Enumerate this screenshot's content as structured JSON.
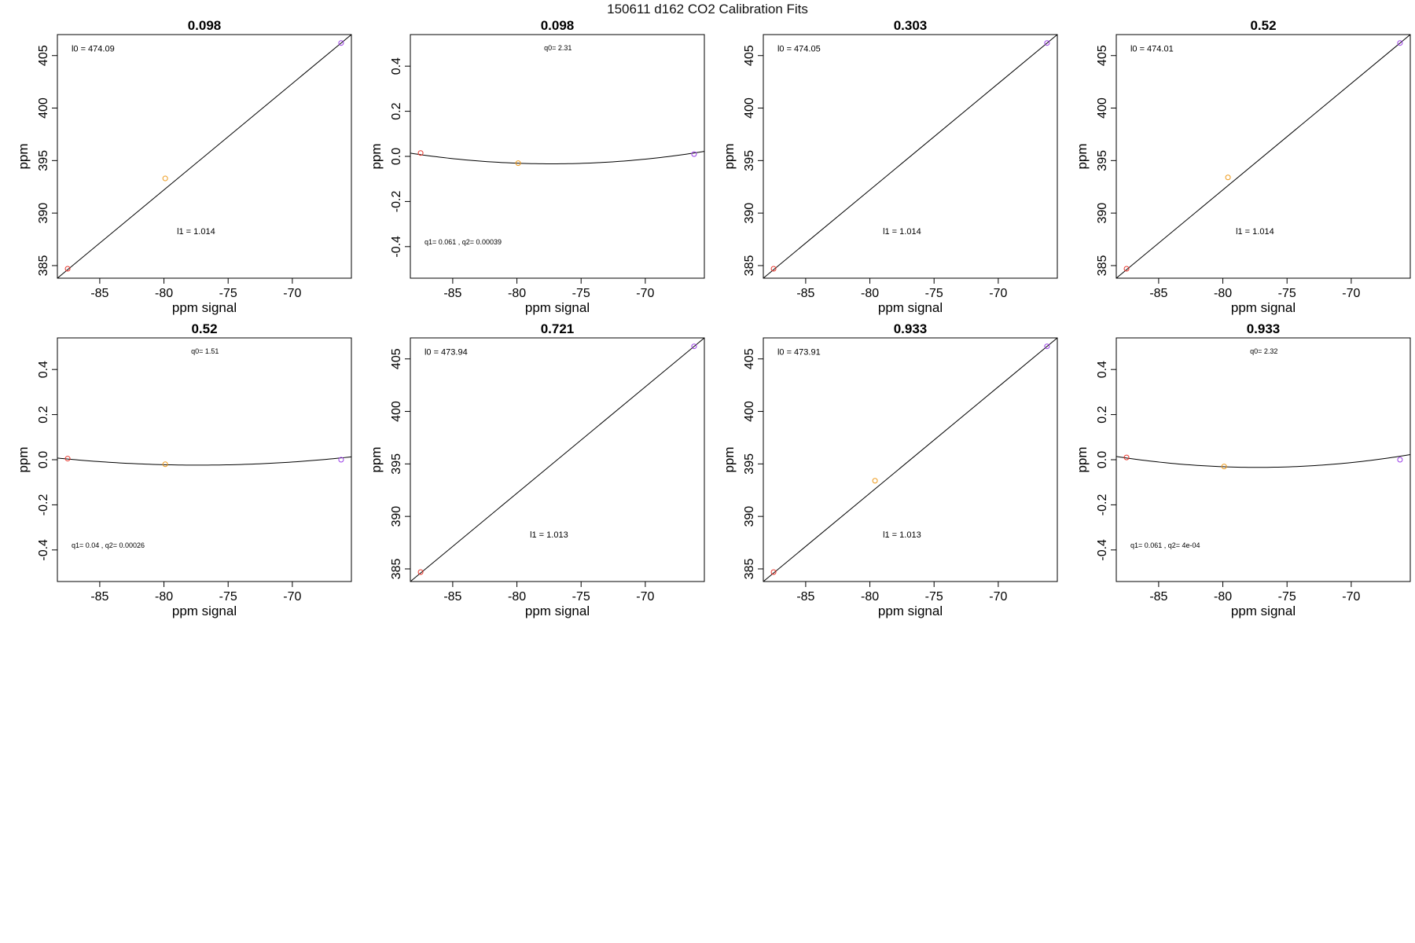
{
  "title": "150611   d162   CO2 Calibration Fits",
  "colors": {
    "red": "#e8342a",
    "orange": "#ee9a1a",
    "purple": "#9a3de6",
    "line": "#000000"
  },
  "chart_data": [
    {
      "type": "scatter",
      "title": "0.098",
      "xlabel": "ppm signal",
      "ylabel": "ppm",
      "xlim": [
        -88.3,
        -65.4
      ],
      "ylim": [
        383.8,
        407
      ],
      "xticks": [
        -85,
        -80,
        -75,
        -70
      ],
      "yticks": [
        385,
        390,
        395,
        400,
        405
      ],
      "points": [
        {
          "x": -87.5,
          "y": 384.7,
          "color": "red"
        },
        {
          "x": -79.9,
          "y": 393.3,
          "color": "orange"
        },
        {
          "x": -66.2,
          "y": 406.2,
          "color": "purple"
        }
      ],
      "fit": {
        "kind": "linear",
        "from": [
          -88.3,
          383.8
        ],
        "to": [
          -65.4,
          407
        ]
      },
      "annotations": [
        {
          "text": "l0 =  474.09",
          "ax": -87.2,
          "ay": 405.4,
          "anchor": "start",
          "size": 11
        },
        {
          "text": "l1 =  1.014",
          "ax": -77.5,
          "ay": 388.0,
          "anchor": "middle",
          "size": 11
        }
      ]
    },
    {
      "type": "scatter",
      "title": "0.098",
      "xlabel": "ppm signal",
      "ylabel": "ppm",
      "xlim": [
        -88.3,
        -65.4
      ],
      "ylim": [
        -0.54,
        0.54
      ],
      "xticks": [
        -85,
        -80,
        -75,
        -70
      ],
      "yticks": [
        -0.4,
        -0.2,
        0.0,
        0.2,
        0.4
      ],
      "yticklabels": [
        "-0.4",
        "-0.2",
        "0.0",
        "0.2",
        "0.4"
      ],
      "points": [
        {
          "x": -87.5,
          "y": 0.015,
          "color": "red"
        },
        {
          "x": -79.9,
          "y": -0.03,
          "color": "orange"
        },
        {
          "x": -66.2,
          "y": 0.01,
          "color": "purple"
        }
      ],
      "fit": {
        "kind": "quadratic",
        "xv": -77.3,
        "yv": -0.033,
        "k": 0.00039
      },
      "annotations": [
        {
          "text": "q0= 2.31",
          "ax": -76.8,
          "ay": 0.47,
          "anchor": "middle",
          "size": 9
        },
        {
          "text": "q1= 0.061 , q2= 0.00039",
          "ax": -87.2,
          "ay": -0.39,
          "anchor": "start",
          "size": 9
        }
      ]
    },
    {
      "type": "scatter",
      "title": "0.303",
      "xlabel": "ppm signal",
      "ylabel": "ppm",
      "xlim": [
        -88.3,
        -65.4
      ],
      "ylim": [
        383.8,
        407
      ],
      "xticks": [
        -85,
        -80,
        -75,
        -70
      ],
      "yticks": [
        385,
        390,
        395,
        400,
        405
      ],
      "points": [
        {
          "x": -87.5,
          "y": 384.7,
          "color": "red"
        },
        {
          "x": -66.2,
          "y": 406.2,
          "color": "purple"
        }
      ],
      "fit": {
        "kind": "linear",
        "from": [
          -88.3,
          383.8
        ],
        "to": [
          -65.4,
          407
        ]
      },
      "annotations": [
        {
          "text": "l0 =  474.05",
          "ax": -87.2,
          "ay": 405.4,
          "anchor": "start",
          "size": 11
        },
        {
          "text": "l1 =  1.014",
          "ax": -77.5,
          "ay": 388.0,
          "anchor": "middle",
          "size": 11
        }
      ]
    },
    {
      "type": "scatter",
      "title": "0.52",
      "xlabel": "ppm signal",
      "ylabel": "ppm",
      "xlim": [
        -88.3,
        -65.4
      ],
      "ylim": [
        383.8,
        407
      ],
      "xticks": [
        -85,
        -80,
        -75,
        -70
      ],
      "yticks": [
        385,
        390,
        395,
        400,
        405
      ],
      "points": [
        {
          "x": -87.5,
          "y": 384.7,
          "color": "red"
        },
        {
          "x": -79.6,
          "y": 393.4,
          "color": "orange"
        },
        {
          "x": -66.2,
          "y": 406.2,
          "color": "purple"
        }
      ],
      "fit": {
        "kind": "linear",
        "from": [
          -88.3,
          383.8
        ],
        "to": [
          -65.4,
          407
        ]
      },
      "annotations": [
        {
          "text": "l0 =  474.01",
          "ax": -87.2,
          "ay": 405.4,
          "anchor": "start",
          "size": 11
        },
        {
          "text": "l1 =  1.014",
          "ax": -77.5,
          "ay": 388.0,
          "anchor": "middle",
          "size": 11
        }
      ]
    },
    {
      "type": "scatter",
      "title": "0.52",
      "xlabel": "ppm signal",
      "ylabel": "ppm",
      "xlim": [
        -88.3,
        -65.4
      ],
      "ylim": [
        -0.54,
        0.54
      ],
      "xticks": [
        -85,
        -80,
        -75,
        -70
      ],
      "yticks": [
        -0.4,
        -0.2,
        0.0,
        0.2,
        0.4
      ],
      "yticklabels": [
        "-0.4",
        "-0.2",
        "0.0",
        "0.2",
        "0.4"
      ],
      "points": [
        {
          "x": -87.5,
          "y": 0.005,
          "color": "red"
        },
        {
          "x": -79.9,
          "y": -0.02,
          "color": "orange"
        },
        {
          "x": -66.2,
          "y": 0.0,
          "color": "purple"
        }
      ],
      "fit": {
        "kind": "quadratic",
        "xv": -77.3,
        "yv": -0.024,
        "k": 0.00026
      },
      "annotations": [
        {
          "text": "q0= 1.51",
          "ax": -76.8,
          "ay": 0.47,
          "anchor": "middle",
          "size": 9
        },
        {
          "text": "q1= 0.04 , q2= 0.00026",
          "ax": -87.2,
          "ay": -0.39,
          "anchor": "start",
          "size": 9
        }
      ]
    },
    {
      "type": "scatter",
      "title": "0.721",
      "xlabel": "ppm signal",
      "ylabel": "ppm",
      "xlim": [
        -88.3,
        -65.4
      ],
      "ylim": [
        383.8,
        407
      ],
      "xticks": [
        -85,
        -80,
        -75,
        -70
      ],
      "yticks": [
        385,
        390,
        395,
        400,
        405
      ],
      "points": [
        {
          "x": -87.5,
          "y": 384.7,
          "color": "red"
        },
        {
          "x": -66.2,
          "y": 406.2,
          "color": "purple"
        }
      ],
      "fit": {
        "kind": "linear",
        "from": [
          -88.3,
          383.8
        ],
        "to": [
          -65.4,
          407
        ]
      },
      "annotations": [
        {
          "text": "l0 =  473.94",
          "ax": -87.2,
          "ay": 405.4,
          "anchor": "start",
          "size": 11
        },
        {
          "text": "l1 =  1.013",
          "ax": -77.5,
          "ay": 388.0,
          "anchor": "middle",
          "size": 11
        }
      ]
    },
    {
      "type": "scatter",
      "title": "0.933",
      "xlabel": "ppm signal",
      "ylabel": "ppm",
      "xlim": [
        -88.3,
        -65.4
      ],
      "ylim": [
        383.8,
        407
      ],
      "xticks": [
        -85,
        -80,
        -75,
        -70
      ],
      "yticks": [
        385,
        390,
        395,
        400,
        405
      ],
      "points": [
        {
          "x": -87.5,
          "y": 384.7,
          "color": "red"
        },
        {
          "x": -79.6,
          "y": 393.4,
          "color": "orange"
        },
        {
          "x": -66.2,
          "y": 406.2,
          "color": "purple"
        }
      ],
      "fit": {
        "kind": "linear",
        "from": [
          -88.3,
          383.8
        ],
        "to": [
          -65.4,
          407
        ]
      },
      "annotations": [
        {
          "text": "l0 =  473.91",
          "ax": -87.2,
          "ay": 405.4,
          "anchor": "start",
          "size": 11
        },
        {
          "text": "l1 =  1.013",
          "ax": -77.5,
          "ay": 388.0,
          "anchor": "middle",
          "size": 11
        }
      ]
    },
    {
      "type": "scatter",
      "title": "0.933",
      "xlabel": "ppm signal",
      "ylabel": "ppm",
      "xlim": [
        -88.3,
        -65.4
      ],
      "ylim": [
        -0.54,
        0.54
      ],
      "xticks": [
        -85,
        -80,
        -75,
        -70
      ],
      "yticks": [
        -0.4,
        -0.2,
        0.0,
        0.2,
        0.4
      ],
      "yticklabels": [
        "-0.4",
        "-0.2",
        "0.0",
        "0.2",
        "0.4"
      ],
      "points": [
        {
          "x": -87.5,
          "y": 0.01,
          "color": "red"
        },
        {
          "x": -79.9,
          "y": -0.03,
          "color": "orange"
        },
        {
          "x": -66.2,
          "y": 0.0,
          "color": "purple"
        }
      ],
      "fit": {
        "kind": "quadratic",
        "xv": -77.3,
        "yv": -0.034,
        "k": 0.0004
      },
      "annotations": [
        {
          "text": "q0= 2.32",
          "ax": -76.8,
          "ay": 0.47,
          "anchor": "middle",
          "size": 9
        },
        {
          "text": "q1= 0.061 , q2= 4e-04",
          "ax": -87.2,
          "ay": -0.39,
          "anchor": "start",
          "size": 9
        }
      ]
    }
  ]
}
